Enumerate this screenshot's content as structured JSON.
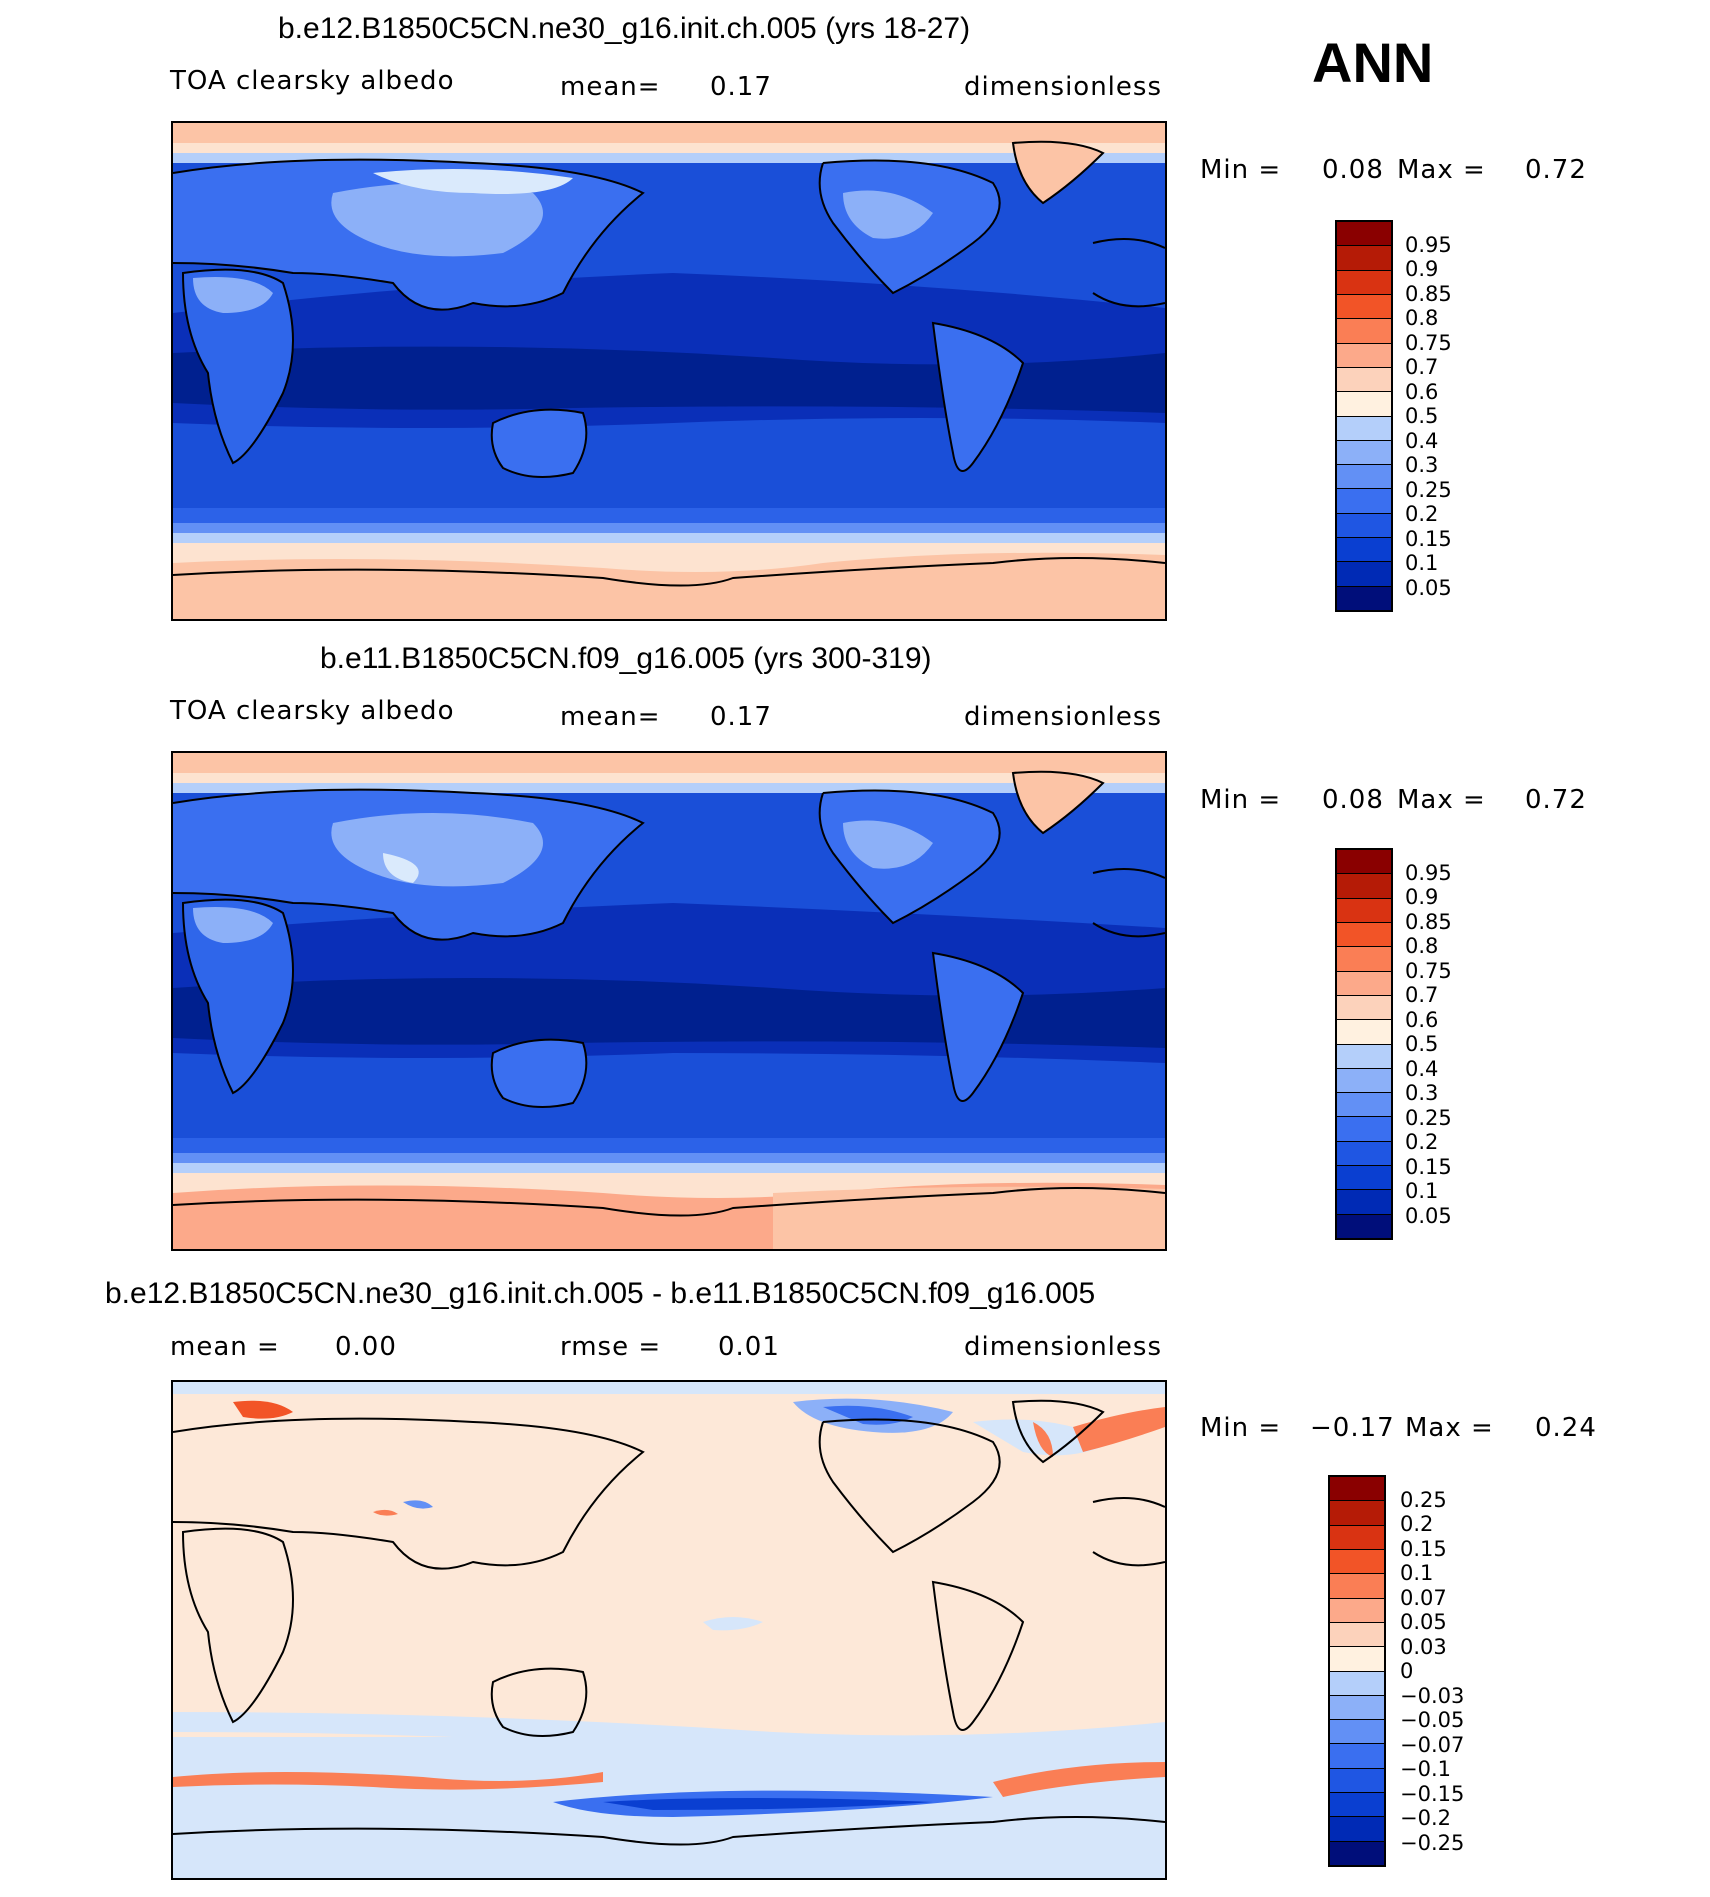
{
  "season": "ANN",
  "colors": {
    "absolute": [
      "#000e7a",
      "#002ab5",
      "#0a3fd1",
      "#1f56e3",
      "#3a6ff0",
      "#6290f5",
      "#8cb0f8",
      "#b4cffa",
      "#daeafc",
      "#fff1e0",
      "#fcd2bb",
      "#fca98a",
      "#fa7e55",
      "#f25427",
      "#d93312",
      "#b51b06",
      "#8a0000"
    ],
    "difference": [
      "#000e7a",
      "#002ab5",
      "#0a3fd1",
      "#1f56e3",
      "#3a6ff0",
      "#6290f5",
      "#8cb0f8",
      "#b4cffa",
      "#daeafc",
      "#fff1e0",
      "#fcd2bb",
      "#fca98a",
      "#fa7e55",
      "#f25427",
      "#d93312",
      "#b51b06",
      "#8a0000"
    ],
    "ocean_deep": "#0a2fb8",
    "ocean_mid": "#1a4fd8",
    "ocean_lite": "#2c62e8",
    "polar_ice": "#fcc4a6",
    "polar_band": "#fde3d0",
    "land_base": "#2f66ea",
    "diff_bg": "#fde8d8",
    "diff_blue": "#d6e6fa"
  },
  "panels": [
    {
      "id": "top",
      "title": "b.e12.B1850C5CN.ne30_g16.init.ch.005 (yrs 18-27)",
      "left_label": "TOA clearsky albedo",
      "stat_label": "mean=",
      "stat_value": "0.17",
      "right_label": "dimensionless",
      "min_label": "Min =",
      "min_value": "0.08",
      "max_label": "Max =",
      "max_value": "0.72",
      "colorbar_levels": [
        "0.95",
        "0.9",
        "0.85",
        "0.8",
        "0.75",
        "0.7",
        "0.6",
        "0.5",
        "0.4",
        "0.3",
        "0.25",
        "0.2",
        "0.15",
        "0.1",
        "0.05"
      ]
    },
    {
      "id": "middle",
      "title": "b.e11.B1850C5CN.f09_g16.005 (yrs 300-319)",
      "left_label": "TOA clearsky albedo",
      "stat_label": "mean=",
      "stat_value": "0.17",
      "right_label": "dimensionless",
      "min_label": "Min =",
      "min_value": "0.08",
      "max_label": "Max =",
      "max_value": "0.72",
      "colorbar_levels": [
        "0.95",
        "0.9",
        "0.85",
        "0.8",
        "0.75",
        "0.7",
        "0.6",
        "0.5",
        "0.4",
        "0.3",
        "0.25",
        "0.2",
        "0.15",
        "0.1",
        "0.05"
      ]
    },
    {
      "id": "bottom",
      "title": "b.e12.B1850C5CN.ne30_g16.init.ch.005 - b.e11.B1850C5CN.f09_g16.005",
      "left_label": "mean =",
      "left_value": "0.00",
      "stat_label": "rmse =",
      "stat_value": "0.01",
      "right_label": "dimensionless",
      "min_label": "Min =",
      "min_value": "−0.17",
      "max_label": "Max =",
      "max_value": "0.24",
      "colorbar_levels": [
        "0.25",
        "0.2",
        "0.15",
        "0.1",
        "0.07",
        "0.05",
        "0.03",
        "0",
        "−0.03",
        "−0.05",
        "−0.07",
        "−0.1",
        "−0.15",
        "−0.2",
        "−0.25"
      ]
    }
  ]
}
